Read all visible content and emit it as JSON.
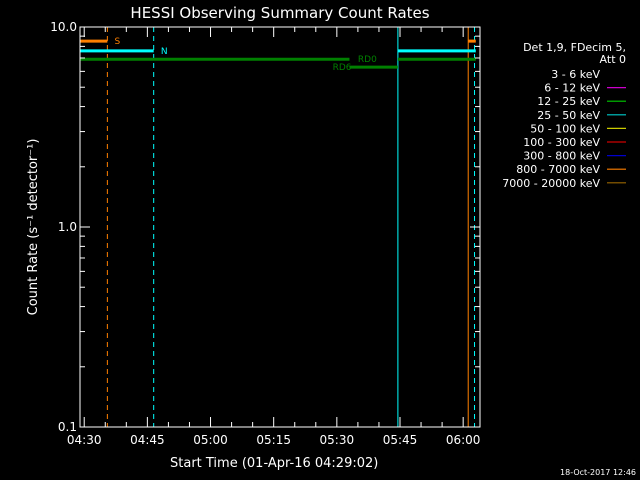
{
  "chart_data": {
    "type": "line",
    "title": "HESSI Observing Summary Count Rates",
    "xlabel": "Start Time (01-Apr-16 04:29:02)",
    "ylabel": "Count Rate (s⁻¹ detector⁻¹)",
    "yscale": "log",
    "ylim": [
      0.1,
      10.0
    ],
    "xlim_minutes_from_start": [
      0,
      95
    ],
    "x_ticks": [
      {
        "label": "04:30",
        "t": 1
      },
      {
        "label": "04:45",
        "t": 16
      },
      {
        "label": "05:00",
        "t": 31
      },
      {
        "label": "05:15",
        "t": 46
      },
      {
        "label": "05:30",
        "t": 61
      },
      {
        "label": "05:45",
        "t": 76
      },
      {
        "label": "06:00",
        "t": 91
      }
    ],
    "y_ticks": [
      {
        "label": "10.0",
        "v": 10.0
      },
      {
        "label": "1.0",
        "v": 1.0
      },
      {
        "label": "0.1",
        "v": 0.1
      }
    ],
    "legend": {
      "header": [
        "Det 1,9, FDecim 5,",
        "Att 0"
      ],
      "position": "right",
      "entries": [
        {
          "label": "3 - 6 keV",
          "color": "#000000"
        },
        {
          "label": "6 - 12 keV",
          "color": "#cc00cc"
        },
        {
          "label": "12 - 25 keV",
          "color": "#00cc00"
        },
        {
          "label": "25 - 50 keV",
          "color": "#00cccc"
        },
        {
          "label": "50 - 100 keV",
          "color": "#cccc00"
        },
        {
          "label": "100 - 300 keV",
          "color": "#cc0000"
        },
        {
          "label": "300 - 800 keV",
          "color": "#0000cc"
        },
        {
          "label": "800 - 7000 keV",
          "color": "#ff8000"
        },
        {
          "label": "7000 - 20000 keV",
          "color": "#996600"
        }
      ]
    },
    "flag_bars": [
      {
        "name": "saa",
        "label": "S",
        "color": "#ff8000",
        "level": 8.5,
        "t_start": 0,
        "t_end": 6.5,
        "label_t": 8.2
      },
      {
        "name": "saa",
        "label": "",
        "color": "#ff8000",
        "level": 8.5,
        "t_start": 92.2,
        "t_end": 94,
        "label_t": null
      },
      {
        "name": "night",
        "label": "N",
        "color": "#00ffff",
        "level": 7.6,
        "t_start": 0,
        "t_end": 17.5,
        "label_t": 19.2
      },
      {
        "name": "night",
        "label": "",
        "color": "#00ffff",
        "level": 7.6,
        "t_start": 75.5,
        "t_end": 94,
        "label_t": null
      },
      {
        "name": "rd0",
        "label": "RD0",
        "color": "#008000",
        "level": 6.9,
        "t_start": 0,
        "t_end": 64,
        "label_t": 66
      },
      {
        "name": "rd0",
        "label": "",
        "color": "#008000",
        "level": 6.9,
        "t_start": 75.5,
        "t_end": 94,
        "label_t": null
      },
      {
        "name": "rd6",
        "label": "RD6",
        "color": "#008000",
        "level": 6.3,
        "t_start": 64,
        "t_end": 75.5,
        "label_t": 60
      }
    ],
    "event_lines": [
      {
        "t": 0,
        "color": "#00ffff",
        "style": "solid"
      },
      {
        "t": 6.5,
        "color": "#ff8000",
        "style": "dashed"
      },
      {
        "t": 17.5,
        "color": "#00ffff",
        "style": "dashed"
      },
      {
        "t": 75.5,
        "color": "#00ffff",
        "style": "solid"
      },
      {
        "t": 92.2,
        "color": "#ff8000",
        "style": "solid"
      },
      {
        "t": 93.7,
        "color": "#00ffff",
        "style": "dashed"
      }
    ],
    "series": []
  },
  "footer": {
    "timestamp": "18-Oct-2017 12:46"
  }
}
